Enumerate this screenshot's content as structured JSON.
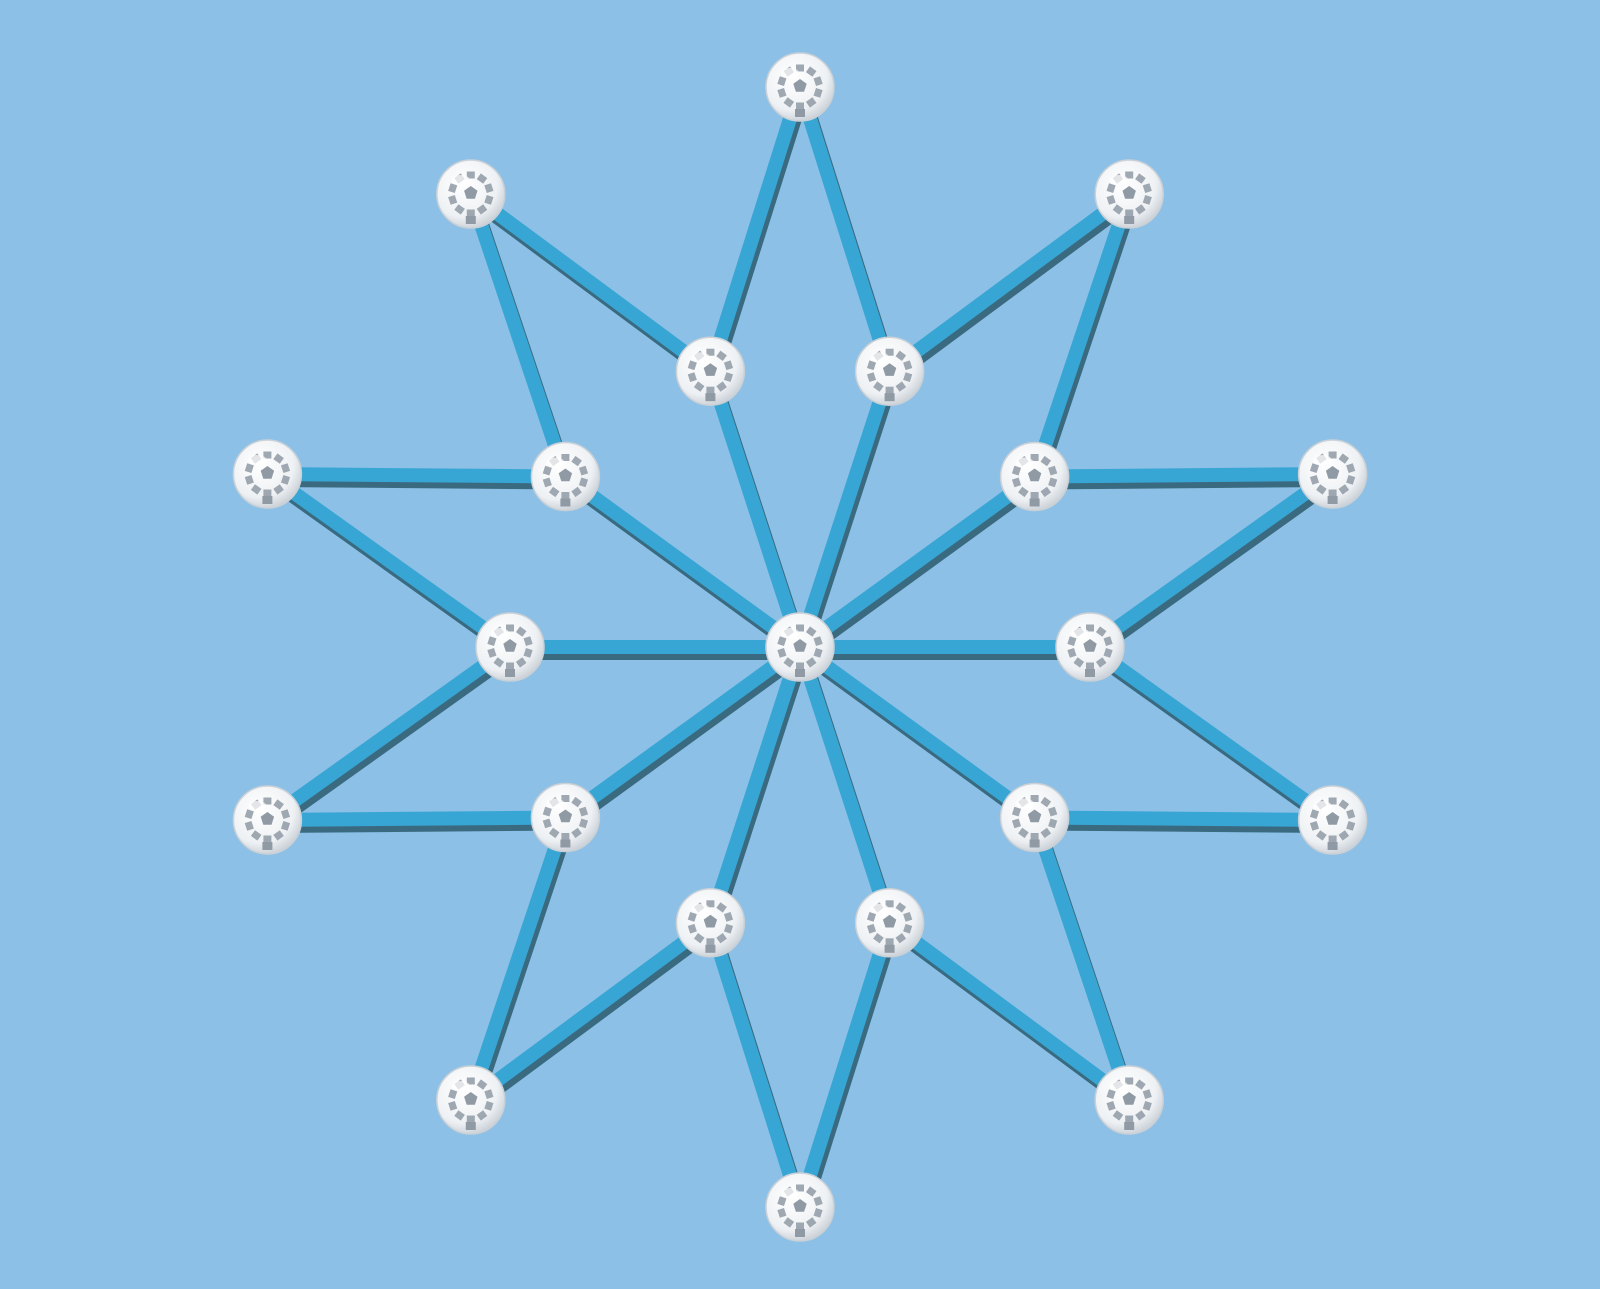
{
  "scene": {
    "name": "ten-point-star-strut-model",
    "colors": {
      "background": "#8cc0e6",
      "strut_top": "#38a6d4",
      "strut_side": "#3a6a80",
      "ball_fill": "#f2f4f6",
      "ball_holes": "#8f9aa4",
      "ball_rim": "#c9d0d6"
    },
    "nodes": [
      {
        "id": "center"
      },
      {
        "id": "inner-0"
      },
      {
        "id": "inner-1"
      },
      {
        "id": "inner-2"
      },
      {
        "id": "inner-3"
      },
      {
        "id": "inner-4"
      },
      {
        "id": "inner-5"
      },
      {
        "id": "inner-6"
      },
      {
        "id": "inner-7"
      },
      {
        "id": "inner-8"
      },
      {
        "id": "inner-9"
      },
      {
        "id": "outer-0"
      },
      {
        "id": "outer-1"
      },
      {
        "id": "outer-2"
      },
      {
        "id": "outer-3"
      },
      {
        "id": "outer-4"
      },
      {
        "id": "outer-5"
      },
      {
        "id": "outer-6"
      },
      {
        "id": "outer-7"
      },
      {
        "id": "outer-8"
      },
      {
        "id": "outer-9"
      }
    ],
    "edges": [
      [
        "center",
        "inner-0"
      ],
      [
        "center",
        "inner-1"
      ],
      [
        "center",
        "inner-2"
      ],
      [
        "center",
        "inner-3"
      ],
      [
        "center",
        "inner-4"
      ],
      [
        "center",
        "inner-5"
      ],
      [
        "center",
        "inner-6"
      ],
      [
        "center",
        "inner-7"
      ],
      [
        "center",
        "inner-8"
      ],
      [
        "center",
        "inner-9"
      ],
      [
        "inner-9",
        "outer-0"
      ],
      [
        "outer-0",
        "inner-0"
      ],
      [
        "inner-0",
        "outer-1"
      ],
      [
        "outer-1",
        "inner-1"
      ],
      [
        "inner-1",
        "outer-2"
      ],
      [
        "outer-2",
        "inner-2"
      ],
      [
        "inner-2",
        "outer-3"
      ],
      [
        "outer-3",
        "inner-3"
      ],
      [
        "inner-3",
        "outer-4"
      ],
      [
        "outer-4",
        "inner-4"
      ],
      [
        "inner-4",
        "outer-5"
      ],
      [
        "outer-5",
        "inner-5"
      ],
      [
        "inner-5",
        "outer-6"
      ],
      [
        "outer-6",
        "inner-6"
      ],
      [
        "inner-6",
        "outer-7"
      ],
      [
        "outer-7",
        "inner-7"
      ],
      [
        "inner-7",
        "outer-8"
      ],
      [
        "outer-8",
        "inner-8"
      ],
      [
        "inner-8",
        "outer-9"
      ],
      [
        "outer-9",
        "inner-9"
      ]
    ]
  }
}
